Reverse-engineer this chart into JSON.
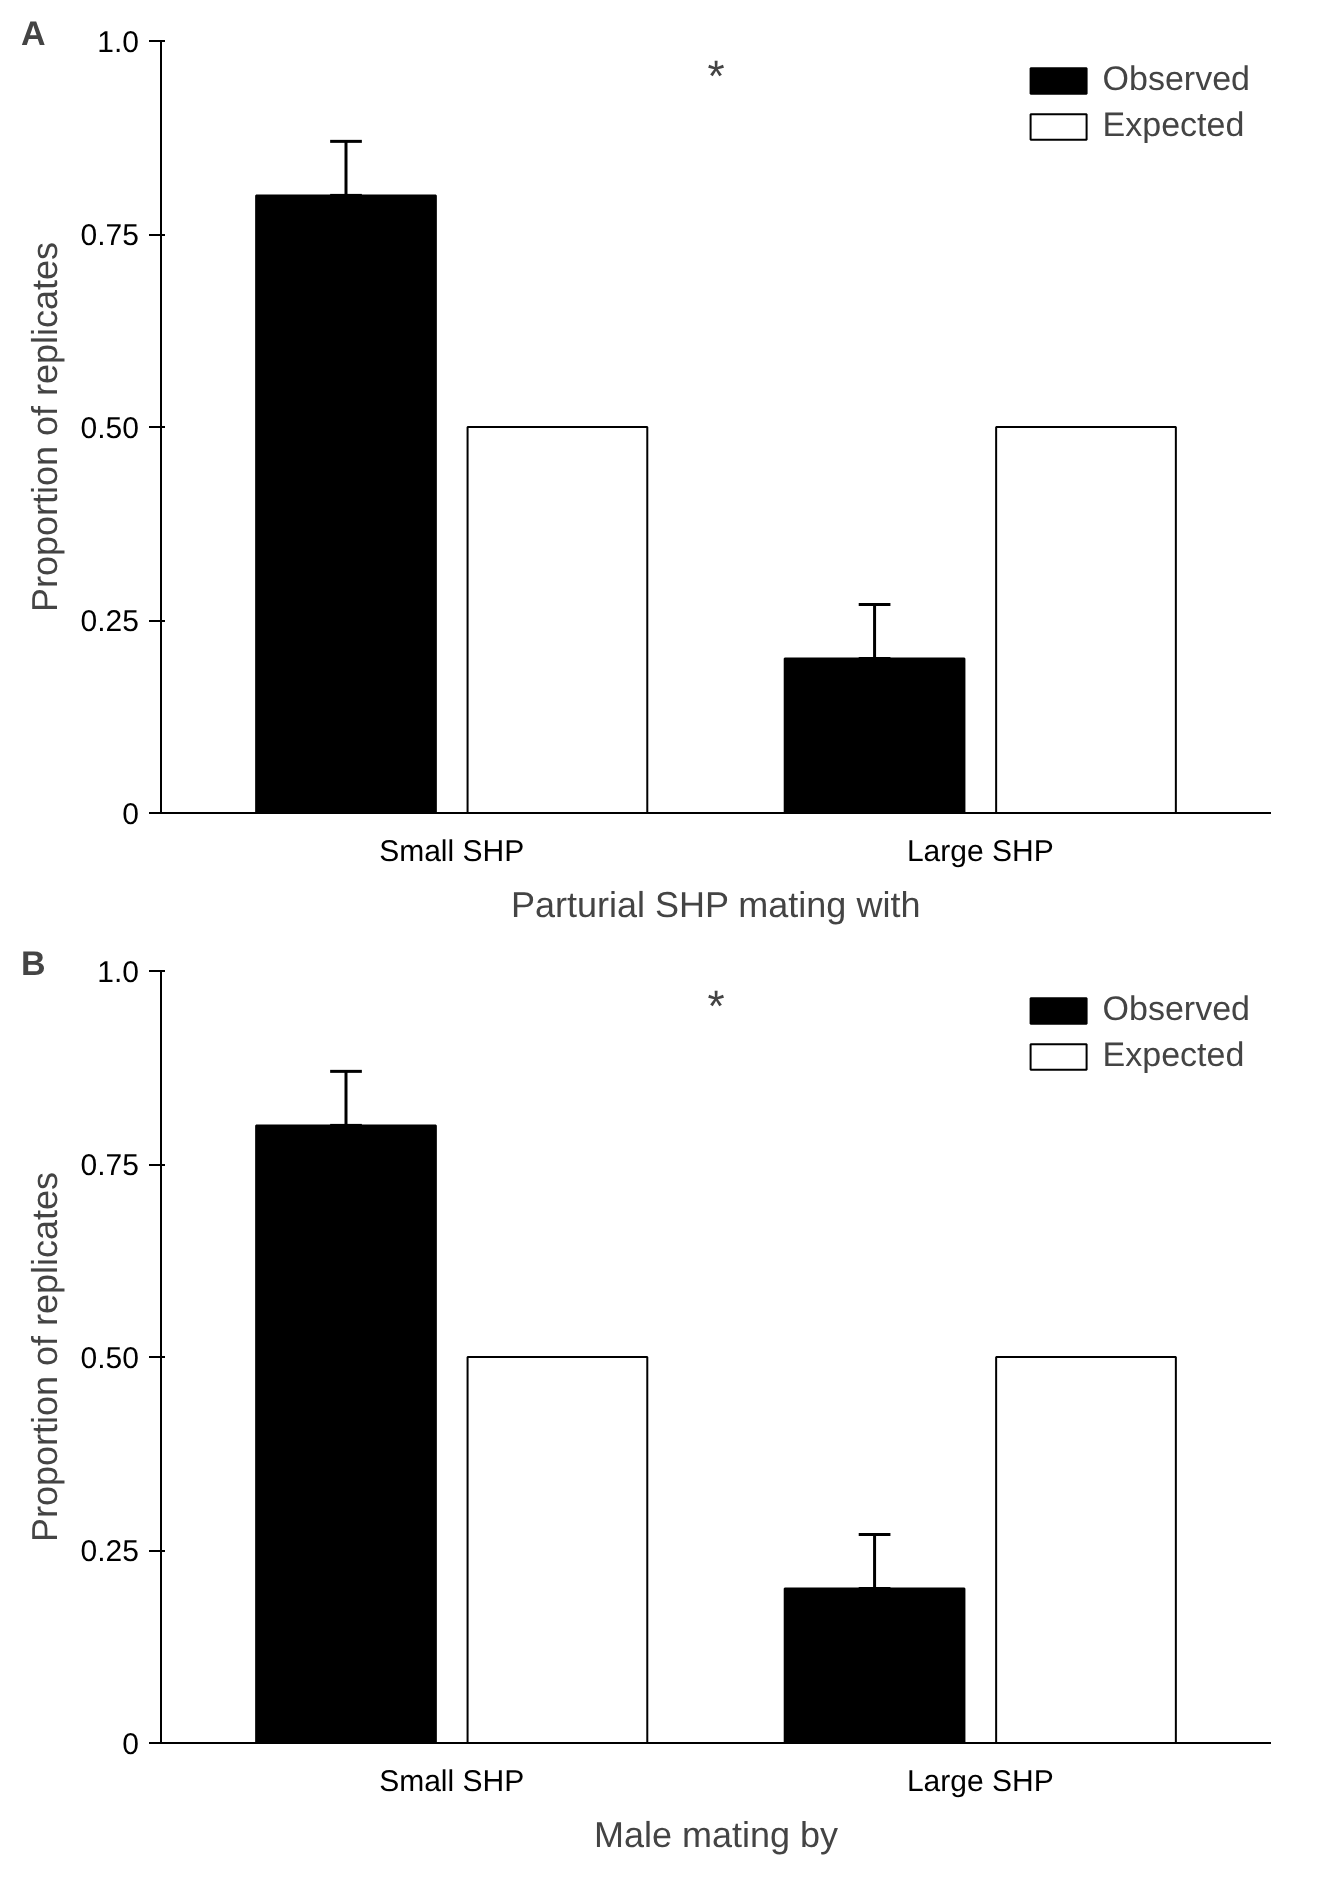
{
  "chart_data": [
    {
      "type": "bar",
      "ylabel": "Proportion of replicates",
      "xlabel": "Parturial SHP mating with",
      "categories": [
        "Small SHP",
        "Large SHP"
      ],
      "series": [
        {
          "name": "Observed",
          "color": "#000000",
          "values": [
            0.8,
            0.2
          ],
          "errors": [
            [
              0.8,
              0.87
            ],
            [
              0.2,
              0.27
            ]
          ]
        },
        {
          "name": "Expected",
          "color": "#ffffff",
          "values": [
            0.5,
            0.5
          ]
        }
      ],
      "ylim": [
        0,
        1.0
      ],
      "yticks": [
        0,
        {
          "value": 0.25,
          "label": "0.25"
        },
        {
          "value": 0.5,
          "label": "0.50"
        },
        {
          "value": 0.75,
          "label": "0.75"
        },
        {
          "value": 1.0,
          "label": "1.0"
        }
      ],
      "grid": false,
      "legend": "top right",
      "annotations": [
        "A",
        "*"
      ]
    },
    {
      "type": "bar",
      "ylabel": "Proportion of replicates",
      "xlabel": "Male mating by",
      "categories": [
        "Small SHP",
        "Large SHP"
      ],
      "series": [
        {
          "name": "Observed",
          "color": "#000000",
          "values": [
            0.8,
            0.2
          ],
          "errors": [
            [
              0.8,
              0.87
            ],
            [
              0.2,
              0.27
            ]
          ]
        },
        {
          "name": "Expected",
          "color": "#ffffff",
          "values": [
            0.5,
            0.5
          ]
        }
      ],
      "ylim": [
        0,
        1.0
      ],
      "yticks": [
        0,
        {
          "value": 0.25,
          "label": "0.25"
        },
        {
          "value": 0.5,
          "label": "0.50"
        },
        {
          "value": 0.75,
          "label": "0.75"
        },
        {
          "value": 1.0,
          "label": "1.0"
        }
      ],
      "grid": false,
      "legend": "top right",
      "annotations": [
        "B",
        "*"
      ]
    }
  ]
}
